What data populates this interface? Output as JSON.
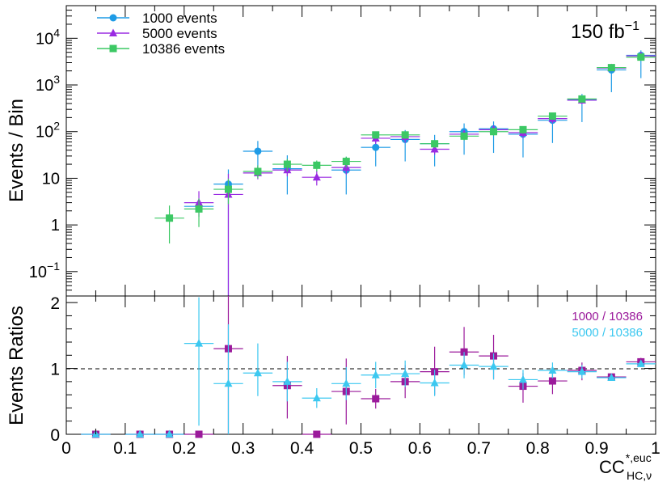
{
  "chart_data": [
    {
      "panel": "top",
      "type": "scatter",
      "yscale": "log",
      "ylabel": "Events / Bin",
      "ylim": [
        0.03,
        50000
      ],
      "y_ticks": [
        {
          "value": 0.1,
          "base": "10",
          "exp": "−1"
        },
        {
          "value": 1,
          "label": "1"
        },
        {
          "value": 10,
          "label": "10"
        },
        {
          "value": 100,
          "base": "10",
          "exp": "2"
        },
        {
          "value": 1000,
          "base": "10",
          "exp": "3"
        },
        {
          "value": 10000,
          "base": "10",
          "exp": "4"
        }
      ],
      "luminosity": {
        "text": "150 fb",
        "sup": "−1"
      },
      "bin_centers": [
        0.025,
        0.075,
        0.125,
        0.175,
        0.225,
        0.275,
        0.325,
        0.375,
        0.425,
        0.475,
        0.525,
        0.575,
        0.625,
        0.675,
        0.725,
        0.775,
        0.825,
        0.875,
        0.925,
        0.975
      ],
      "series": [
        {
          "name": "1000 events",
          "color": "#1e9be6",
          "marker": "circle",
          "values": [
            null,
            null,
            null,
            null,
            2.5,
            7.5,
            38,
            16,
            null,
            15,
            46,
            68,
            55,
            100,
            115,
            88,
            175,
            490,
            2100,
            4300
          ],
          "err_low": [
            null,
            null,
            null,
            null,
            null,
            7.47,
            26,
            11.5,
            null,
            10.5,
            28,
            45,
            37,
            68,
            80,
            60,
            118,
            330,
            1400,
            2900
          ],
          "err_high": [
            null,
            null,
            null,
            null,
            null,
            8,
            25,
            15,
            null,
            14,
            31,
            40,
            30,
            50,
            50,
            40,
            60,
            150,
            600,
            1200
          ]
        },
        {
          "name": "5000 events",
          "color": "#9a2be2",
          "marker": "triangle",
          "values": [
            null,
            null,
            null,
            null,
            3,
            4.5,
            13,
            15,
            10.5,
            17,
            72,
            78,
            42,
            88,
            110,
            95,
            190,
            470,
            2300,
            4200
          ],
          "err_low": [
            null,
            null,
            null,
            null,
            1.5,
            4.47,
            3.5,
            4,
            3.5,
            5,
            18,
            20,
            10,
            20,
            25,
            22,
            40,
            80,
            300,
            500
          ],
          "err_high": [
            null,
            null,
            null,
            null,
            2.3,
            8,
            5,
            5,
            4,
            6,
            20,
            20,
            12,
            20,
            25,
            22,
            40,
            80,
            300,
            500
          ]
        },
        {
          "name": "10386 events",
          "color": "#3cc864",
          "marker": "square",
          "values": [
            null,
            null,
            null,
            1.4,
            2.2,
            5.8,
            14,
            20,
            19,
            23,
            85,
            85,
            55,
            80,
            100,
            110,
            215,
            500,
            2350,
            3950
          ],
          "err_low": [
            null,
            null,
            null,
            1.0,
            1.3,
            3,
            4,
            6,
            5,
            6,
            15,
            15,
            10,
            15,
            18,
            20,
            35,
            70,
            300,
            400
          ],
          "err_high": [
            null,
            null,
            null,
            1.2,
            1.5,
            4,
            5,
            6,
            5,
            6,
            15,
            15,
            10,
            15,
            18,
            20,
            35,
            70,
            300,
            400
          ]
        }
      ]
    },
    {
      "panel": "bottom",
      "type": "scatter",
      "ylabel": "Events Ratios",
      "ylim": [
        0,
        2.1
      ],
      "y_ticks": [
        0,
        1,
        2
      ],
      "reference_line": 1,
      "xlabel": {
        "base": "CC",
        "sup": "*,euc",
        "sub": "HC,ν"
      },
      "xlim": [
        0,
        1
      ],
      "x_ticks": [
        "0",
        "0.1",
        "0.2",
        "0.3",
        "0.4",
        "0.5",
        "0.6",
        "0.7",
        "0.8",
        "0.9",
        "1"
      ],
      "bin_centers": [
        0.05,
        0.125,
        0.175,
        0.225,
        0.275,
        0.325,
        0.375,
        0.425,
        0.475,
        0.525,
        0.575,
        0.625,
        0.675,
        0.725,
        0.775,
        0.825,
        0.875,
        0.925,
        0.975
      ],
      "series": [
        {
          "name": "1000 / 10386",
          "color": "#9b1a9b",
          "marker": "square",
          "values": [
            0,
            0,
            0,
            0,
            1.3,
            null,
            0.74,
            0,
            0.65,
            0.54,
            0.8,
            0.95,
            1.25,
            1.19,
            0.73,
            0.81,
            0.97,
            0.87,
            1.1
          ],
          "err_low": [
            0,
            0,
            0,
            0,
            1.3,
            null,
            0.5,
            0,
            0.5,
            0.15,
            0.25,
            0.35,
            0.35,
            0.35,
            0.25,
            0.2,
            0.15,
            0.05,
            0.06
          ],
          "err_high": [
            0,
            0,
            0,
            0,
            1.3,
            null,
            0.45,
            0,
            0.5,
            0.15,
            0.25,
            0.38,
            0.38,
            0.32,
            0.2,
            0.2,
            0.12,
            0.05,
            0.06
          ]
        },
        {
          "name": "5000 / 10386",
          "color": "#3cc8f0",
          "marker": "triangle",
          "values": [
            0,
            0,
            0,
            1.38,
            0.77,
            0.93,
            0.8,
            0.55,
            0.77,
            0.9,
            0.92,
            0.78,
            1.05,
            1.03,
            0.83,
            0.97,
            0.95,
            0.86,
            1.07
          ],
          "err_low": [
            0,
            0,
            0,
            1.25,
            0.77,
            0.35,
            0.3,
            0.15,
            0.25,
            0.2,
            0.2,
            0.2,
            0.2,
            0.2,
            0.15,
            0.12,
            0.1,
            0.04,
            0.05
          ],
          "err_high": [
            0,
            0,
            0,
            0.7,
            0.9,
            0.45,
            0.3,
            0.15,
            0.25,
            0.2,
            0.2,
            0.2,
            0.2,
            0.2,
            0.15,
            0.12,
            0.1,
            0.04,
            0.05
          ]
        }
      ]
    }
  ]
}
